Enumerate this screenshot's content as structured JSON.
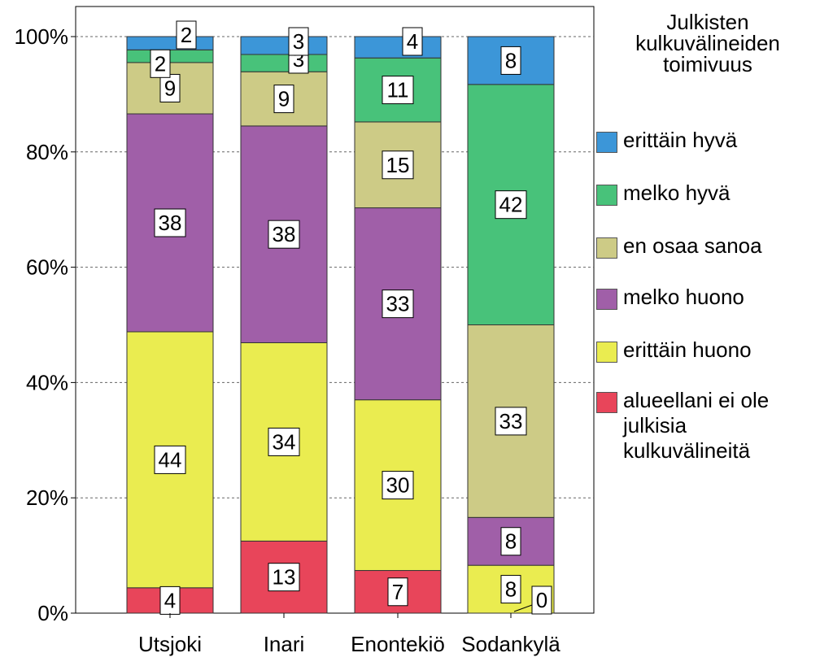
{
  "chart_data": {
    "type": "bar",
    "stacked": true,
    "percent_stacked": true,
    "categories": [
      "Utsjoki",
      "Inari",
      "Enontekiö",
      "Sodankylä"
    ],
    "yticks": [
      "0%",
      "20%",
      "40%",
      "60%",
      "80%",
      "100%"
    ],
    "ylim": [
      0,
      100
    ],
    "grid": "horizontal dashed",
    "legend_position": "right",
    "legend_title": "Julkisten kulkuvälineiden toimivuus",
    "series": [
      {
        "name": "alueellani ei ole julkisia kulkuvälineitä",
        "color": "#e8455a",
        "values": [
          4,
          13,
          7,
          0
        ],
        "shares": [
          4.4,
          12.5,
          7.4,
          0
        ]
      },
      {
        "name": "erittäin huono",
        "color": "#eaec50",
        "values": [
          44,
          34,
          30,
          8
        ],
        "shares": [
          44.4,
          34.4,
          29.6,
          8.3
        ]
      },
      {
        "name": "melko huono",
        "color": "#a05fa8",
        "values": [
          38,
          38,
          33,
          8
        ],
        "shares": [
          37.8,
          37.6,
          33.3,
          8.3
        ]
      },
      {
        "name": "en osaa sanoa",
        "color": "#cdcb86",
        "values": [
          9,
          9,
          15,
          33
        ],
        "shares": [
          8.9,
          9.4,
          14.9,
          33.4
        ]
      },
      {
        "name": "melko hyvä",
        "color": "#48c27a",
        "values": [
          2,
          3,
          11,
          42
        ],
        "shares": [
          2.2,
          3.0,
          11.1,
          41.7
        ]
      },
      {
        "name": "erittäin hyvä",
        "color": "#3c96d8",
        "values": [
          2,
          3,
          4,
          8
        ],
        "shares": [
          2.3,
          3.1,
          3.7,
          8.3
        ]
      }
    ]
  }
}
